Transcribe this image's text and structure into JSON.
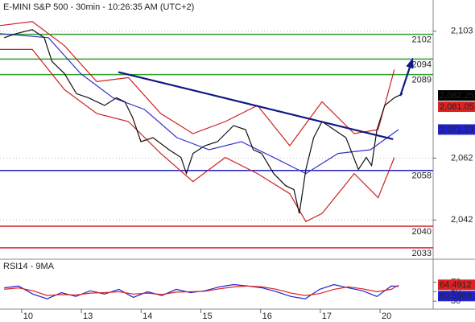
{
  "chart_data": [
    {
      "type": "line",
      "title": "E-MINI S&P 500 - 30min - 10:26:35 AM (UTC+2)",
      "xlim": [
        -0.47,
        6.78
      ],
      "ylim": [
        2029.85,
        2112.56
      ],
      "yticks": [
        {
          "value": 2103,
          "label": "2,103"
        },
        {
          "value": 2062,
          "label": "2,062"
        },
        {
          "value": 2042,
          "label": "2,042"
        }
      ],
      "grid": true,
      "series": [
        {
          "color": "#cc2222",
          "x": [
            -0.47,
            0.07,
            0.61,
            1.15,
            1.68,
            2.22,
            2.76,
            3.3,
            3.84,
            4.38,
            4.92,
            5.46,
            5.86,
            6.13
          ],
          "values": [
            2104.8,
            2106.1,
            2098.3,
            2086.7,
            2088.0,
            2076.4,
            2069.9,
            2073.8,
            2079.0,
            2066.0,
            2080.2,
            2069.9,
            2071.2,
            2090.6
          ]
        },
        {
          "color": "#cc2222",
          "x": [
            -0.47,
            0.07,
            0.61,
            1.15,
            1.68,
            2.22,
            2.76,
            3.3,
            3.84,
            4.38,
            4.65,
            4.92,
            5.46,
            5.86,
            6.13
          ],
          "values": [
            2097.1,
            2097.1,
            2084.1,
            2076.4,
            2073.8,
            2063.5,
            2054.4,
            2062.2,
            2057.0,
            2050.5,
            2041.5,
            2044.1,
            2057.0,
            2049.2,
            2062.2
          ]
        },
        {
          "color": "#3333cc",
          "x": [
            -0.47,
            0.34,
            0.88,
            1.42,
            1.95,
            2.49,
            3.03,
            3.57,
            4.11,
            4.65,
            5.19,
            5.73,
            6.2
          ],
          "values": [
            2102.2,
            2100.9,
            2089.3,
            2081.5,
            2077.7,
            2068.6,
            2064.7,
            2067.3,
            2062.2,
            2057.0,
            2063.5,
            2064.7,
            2071.2
          ]
        },
        {
          "color": "#111111",
          "x": [
            -0.4,
            -0.2,
            0.07,
            0.27,
            0.4,
            0.61,
            0.81,
            1.01,
            1.28,
            1.48,
            1.62,
            1.75,
            1.89,
            2.09,
            2.36,
            2.56,
            2.65,
            2.76,
            2.96,
            3.17,
            3.44,
            3.64,
            3.77,
            3.91,
            4.11,
            4.31,
            4.45,
            4.54,
            4.65,
            4.78,
            4.92,
            5.12,
            5.32,
            5.53,
            5.66,
            5.75,
            5.84,
            5.97,
            6.13,
            6.27
          ],
          "values": [
            2100.9,
            2102.2,
            2103.5,
            2100.9,
            2093.2,
            2089.3,
            2082.8,
            2081.5,
            2079.0,
            2081.5,
            2080.2,
            2075.1,
            2067.3,
            2068.6,
            2064.7,
            2062.2,
            2057.0,
            2063.5,
            2066.0,
            2067.3,
            2072.5,
            2071.2,
            2064.7,
            2063.5,
            2057.0,
            2053.1,
            2051.8,
            2044.1,
            2058.3,
            2068.6,
            2073.8,
            2071.2,
            2068.6,
            2058.3,
            2062.2,
            2059.6,
            2071.2,
            2079.0,
            2081.5,
            2082.8
          ]
        }
      ],
      "levels": [
        {
          "value": 2102,
          "color": "#2f9e2f"
        },
        {
          "value": 2094,
          "color": "#2f9e2f"
        },
        {
          "value": 2089,
          "color": "#2f9e2f"
        },
        {
          "value": 2058,
          "color": "#2222bb"
        },
        {
          "value": 2040,
          "color": "#dd2222"
        },
        {
          "value": 2033,
          "color": "#dd2222"
        }
      ],
      "trendline": {
        "color": "#101a80",
        "x": [
          1.51,
          6.11
        ],
        "values": [
          2089.8,
          2068.1
        ]
      },
      "arrow": {
        "color": "#101a80",
        "x": [
          6.23,
          6.43
        ],
        "values": [
          2082.1,
          2093.7
        ]
      },
      "price_tags": [
        {
          "value": 2082.25,
          "label": "2,082.25",
          "color": "#000000"
        },
        {
          "value": 2081.05,
          "label": "2,081.05",
          "color": "#dd2222"
        },
        {
          "value": 2071.23,
          "label": "2,071.23",
          "color": "#2222cc"
        }
      ]
    },
    {
      "type": "line",
      "title": "RSI14 - 9MA",
      "xlim": [
        -0.47,
        6.78
      ],
      "ylim": [
        15,
        115
      ],
      "yticks": [
        70,
        50,
        30
      ],
      "xticks": [
        {
          "value": 0,
          "label": "10"
        },
        {
          "value": 1,
          "label": "13"
        },
        {
          "value": 2,
          "label": "14"
        },
        {
          "value": 3,
          "label": "15"
        },
        {
          "value": 4,
          "label": "16"
        },
        {
          "value": 5,
          "label": "17"
        },
        {
          "value": 6,
          "label": "20"
        }
      ],
      "series": [
        {
          "color": "#2222cc",
          "x": [
            -0.4,
            -0.16,
            0.08,
            0.32,
            0.56,
            0.8,
            1.04,
            1.28,
            1.52,
            1.76,
            2.0,
            2.24,
            2.48,
            2.72,
            2.96,
            3.2,
            3.44,
            3.68,
            3.92,
            4.16,
            4.4,
            4.64,
            4.88,
            5.12,
            5.36,
            5.6,
            5.84,
            6.08,
            6.2
          ],
          "values": [
            58,
            62,
            45,
            35,
            48,
            40,
            52,
            45,
            55,
            38,
            50,
            42,
            55,
            48,
            52,
            60,
            65,
            62,
            58,
            50,
            40,
            35,
            55,
            65,
            58,
            52,
            40,
            62,
            61
          ]
        },
        {
          "color": "#dd2222",
          "x": [
            -0.4,
            -0.16,
            0.08,
            0.32,
            0.56,
            0.8,
            1.04,
            1.28,
            1.52,
            1.76,
            2.0,
            2.24,
            2.48,
            2.72,
            2.96,
            3.2,
            3.44,
            3.68,
            3.92,
            4.16,
            4.4,
            4.64,
            4.88,
            5.12,
            5.36,
            5.6,
            5.84,
            6.08,
            6.2
          ],
          "values": [
            55,
            58,
            52,
            42,
            44,
            43,
            47,
            48,
            50,
            45,
            47,
            44,
            49,
            50,
            51,
            56,
            60,
            62,
            60,
            55,
            47,
            42,
            46,
            55,
            60,
            56,
            50,
            55,
            64
          ]
        }
      ],
      "price_tags": [
        {
          "value": 64.4912,
          "label": "64.4912",
          "color": "#dd2222"
        },
        {
          "value": 60.5969,
          "label": "60.5969",
          "color": "#2222cc"
        }
      ]
    }
  ]
}
